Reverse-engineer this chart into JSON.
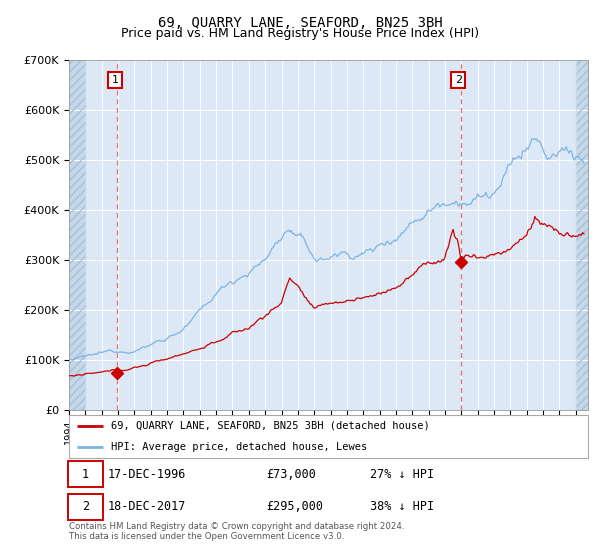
{
  "title": "69, QUARRY LANE, SEAFORD, BN25 3BH",
  "subtitle": "Price paid vs. HM Land Registry's House Price Index (HPI)",
  "ylim": [
    0,
    700000
  ],
  "yticks": [
    0,
    100000,
    200000,
    300000,
    400000,
    500000,
    600000,
    700000
  ],
  "ytick_labels": [
    "£0",
    "£100K",
    "£200K",
    "£300K",
    "£400K",
    "£500K",
    "£600K",
    "£700K"
  ],
  "hpi_color": "#7eb4e2",
  "price_color": "#cc0000",
  "marker_color": "#cc0000",
  "vline_color": "#e87070",
  "plot_bg": "#dce8f5",
  "legend_label_red": "69, QUARRY LANE, SEAFORD, BN25 3BH (detached house)",
  "legend_label_blue": "HPI: Average price, detached house, Lewes",
  "sale1_date_num": 1996.96,
  "sale1_price": 73000,
  "sale2_date_num": 2017.96,
  "sale2_price": 295000,
  "table_row1": [
    "1",
    "17-DEC-1996",
    "£73,000",
    "27% ↓ HPI"
  ],
  "table_row2": [
    "2",
    "18-DEC-2017",
    "£295,000",
    "38% ↓ HPI"
  ],
  "footnote": "Contains HM Land Registry data © Crown copyright and database right 2024.\nThis data is licensed under the Open Government Licence v3.0.",
  "title_fontsize": 10,
  "subtitle_fontsize": 9,
  "xmin": 1994.0,
  "xmax": 2025.75
}
